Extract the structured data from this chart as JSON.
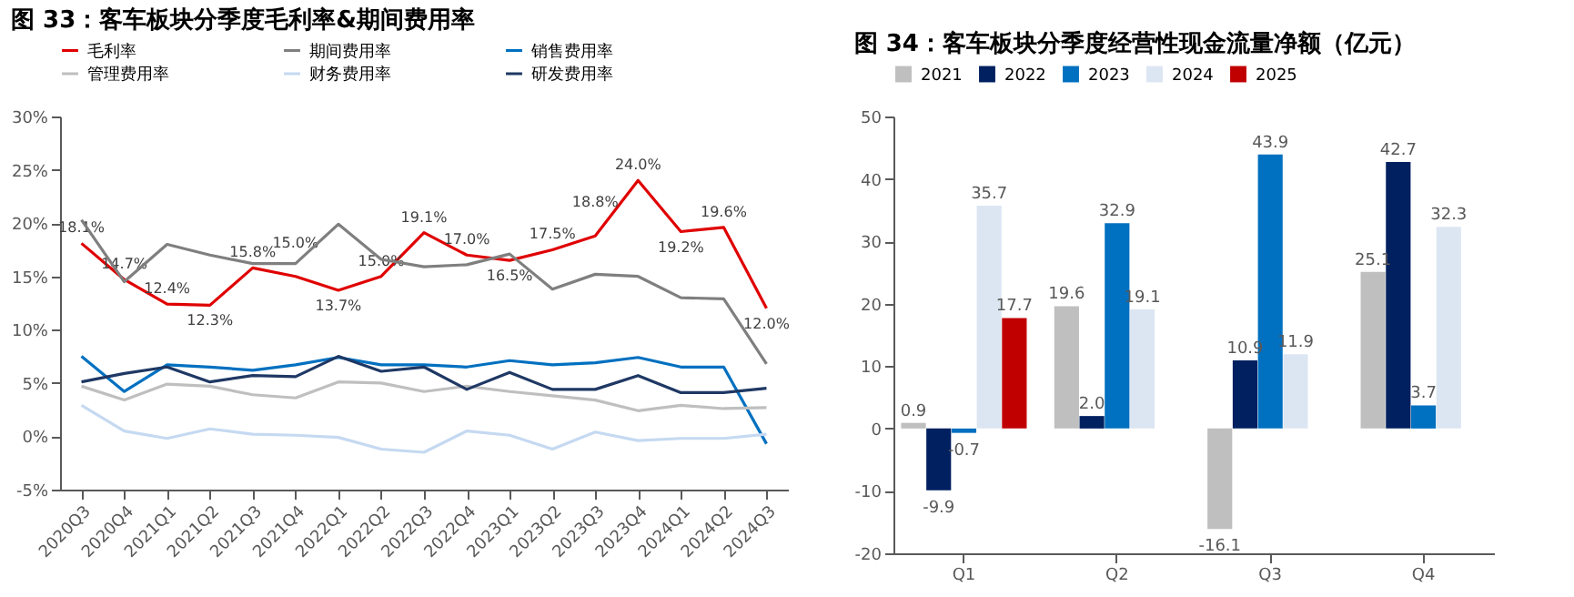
{
  "chart_data": [
    {
      "type": "line",
      "title": "图 33：客车板块分季度毛利率&期间费用率",
      "categories": [
        "2020Q3",
        "2020Q4",
        "2021Q1",
        "2021Q2",
        "2021Q3",
        "2021Q4",
        "2022Q1",
        "2022Q2",
        "2022Q3",
        "2022Q4",
        "2023Q1",
        "2023Q2",
        "2023Q3",
        "2023Q4",
        "2024Q1",
        "2024Q2",
        "2024Q3"
      ],
      "series": [
        {
          "name": "毛利率",
          "color": "#e00000",
          "values": [
            18.1,
            14.7,
            12.4,
            12.3,
            15.8,
            15.0,
            13.7,
            15.0,
            19.1,
            17.0,
            16.5,
            17.5,
            18.8,
            24.0,
            19.2,
            19.6,
            12.0
          ],
          "value_labels": [
            "18.1%",
            "14.7%",
            "12.4%",
            "12.3%",
            "15.8%",
            "15.0%",
            "13.7%",
            "15.0%",
            "19.1%",
            "17.0%",
            "16.5%",
            "17.5%",
            "18.8%",
            "24.0%",
            "19.2%",
            "19.6%",
            "12.0%"
          ]
        },
        {
          "name": "期间费用率",
          "color": "#7f7f7f",
          "values": [
            20.3,
            14.5,
            18.0,
            17.0,
            16.2,
            16.2,
            19.9,
            16.6,
            15.9,
            16.1,
            17.1,
            13.8,
            15.2,
            15.0,
            13.0,
            12.9,
            6.8
          ]
        },
        {
          "name": "销售费用率",
          "color": "#0070c0",
          "values": [
            7.5,
            4.2,
            6.7,
            6.5,
            6.2,
            6.7,
            7.4,
            6.7,
            6.7,
            6.5,
            7.1,
            6.7,
            6.9,
            7.4,
            6.5,
            6.5,
            -0.7
          ]
        },
        {
          "name": "管理费用率",
          "color": "#bfbfbf",
          "values": [
            4.7,
            3.4,
            4.9,
            4.7,
            3.9,
            3.6,
            5.1,
            5.0,
            4.2,
            4.7,
            4.2,
            3.8,
            3.4,
            2.4,
            2.9,
            2.6,
            2.7
          ]
        },
        {
          "name": "财务费用率",
          "color": "#c5d9f1",
          "values": [
            2.9,
            0.5,
            -0.2,
            0.7,
            0.2,
            0.1,
            -0.1,
            -1.2,
            -1.5,
            0.5,
            0.1,
            -1.2,
            0.4,
            -0.4,
            -0.2,
            -0.2,
            0.2
          ]
        },
        {
          "name": "研发费用率",
          "color": "#1f3864",
          "values": [
            5.1,
            5.9,
            6.5,
            5.1,
            5.7,
            5.6,
            7.5,
            6.1,
            6.5,
            4.4,
            6.0,
            4.4,
            4.4,
            5.7,
            4.1,
            4.1,
            4.5
          ]
        }
      ],
      "ylim": [
        -5,
        30
      ],
      "yticks": [
        {
          "value": -5,
          "label": "-5%"
        },
        {
          "value": 0,
          "label": "0%"
        },
        {
          "value": 5,
          "label": "5%"
        },
        {
          "value": 10,
          "label": "10%"
        },
        {
          "value": 15,
          "label": "15%"
        },
        {
          "value": 20,
          "label": "20%"
        },
        {
          "value": 25,
          "label": "25%"
        },
        {
          "value": 30,
          "label": "30%"
        }
      ],
      "legend": "top",
      "grid": false,
      "marker": "none",
      "line_style": "solid"
    },
    {
      "type": "bar",
      "title": "图 34：客车板块分季度经营性现金流量净额（亿元）",
      "categories": [
        "Q1",
        "Q2",
        "Q3",
        "Q4"
      ],
      "series": [
        {
          "name": "2021",
          "color": "#bfbfbf",
          "values": [
            0.9,
            19.6,
            -16.1,
            25.1
          ],
          "value_labels": [
            "0.9",
            "19.6",
            "-16.1",
            "25.1"
          ]
        },
        {
          "name": "2022",
          "color": "#002060",
          "values": [
            -9.9,
            2.0,
            10.9,
            42.7
          ],
          "value_labels": [
            "-9.9",
            "2.0",
            "10.9",
            "42.7"
          ]
        },
        {
          "name": "2023",
          "color": "#0070c0",
          "values": [
            -0.7,
            32.9,
            43.9,
            3.7
          ],
          "value_labels": [
            "-0.7",
            "32.9",
            "43.9",
            "3.7"
          ]
        },
        {
          "name": "2024",
          "color": "#dce6f2",
          "values": [
            35.7,
            19.1,
            11.9,
            32.3
          ],
          "value_labels": [
            "35.7",
            "19.1",
            "11.9",
            "32.3"
          ]
        },
        {
          "name": "2025",
          "color": "#c00000",
          "values": [
            17.7,
            null,
            null,
            null
          ],
          "value_labels": [
            "17.7",
            null,
            null,
            null
          ]
        }
      ],
      "ylim": [
        -20,
        50
      ],
      "yticks": [
        -20,
        -10,
        0,
        10,
        20,
        30,
        40,
        50
      ],
      "legend": "top",
      "grid": false
    }
  ]
}
